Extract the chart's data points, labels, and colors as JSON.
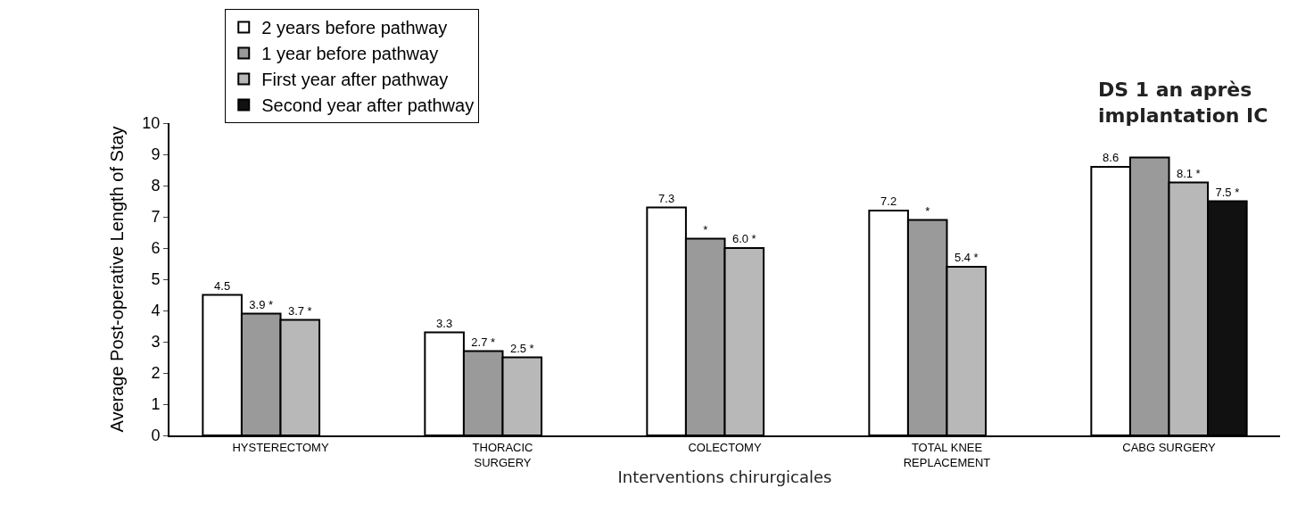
{
  "chart_data": {
    "type": "bar",
    "annotations": [
      "DS 1 an après\nimplantation IC"
    ],
    "xlabel": "Interventions chirurgicales",
    "ylabel": "Average Post-operative Length of Stay",
    "categories": [
      "HYSTERECTOMY",
      "THORACIC\nSURGERY",
      "COLECTOMY",
      "TOTAL KNEE\nREPLACEMENT",
      "CABG SURGERY"
    ],
    "series": [
      {
        "name": "2 years before pathway",
        "color": "#ffffff",
        "values": [
          4.5,
          3.3,
          7.3,
          7.2,
          8.6
        ],
        "value_labels": [
          "4.5",
          "3.3",
          "7.3",
          "7.2",
          "8.6"
        ]
      },
      {
        "name": "1 year before pathway",
        "color": "#9a9a9a",
        "values": [
          3.9,
          2.7,
          6.3,
          6.9,
          8.9
        ],
        "value_labels": [
          "3.9 *",
          "2.7 *",
          "*",
          "*",
          null
        ]
      },
      {
        "name": "First year after pathway",
        "color": "#b8b8b8",
        "values": [
          3.7,
          2.5,
          6.0,
          5.4,
          8.1
        ],
        "value_labels": [
          "3.7 *",
          "2.5 *",
          "6.0 *",
          "5.4 *",
          "8.1 *"
        ]
      },
      {
        "name": "Second year after pathway",
        "color": "#111111",
        "values": [
          null,
          null,
          null,
          null,
          7.5
        ],
        "value_labels": [
          null,
          null,
          null,
          null,
          "7.5 *"
        ]
      }
    ],
    "ylim": [
      0,
      10
    ],
    "yticks": [
      0,
      1,
      2,
      3,
      4,
      5,
      6,
      7,
      8,
      9,
      10
    ],
    "legend": "top left"
  }
}
